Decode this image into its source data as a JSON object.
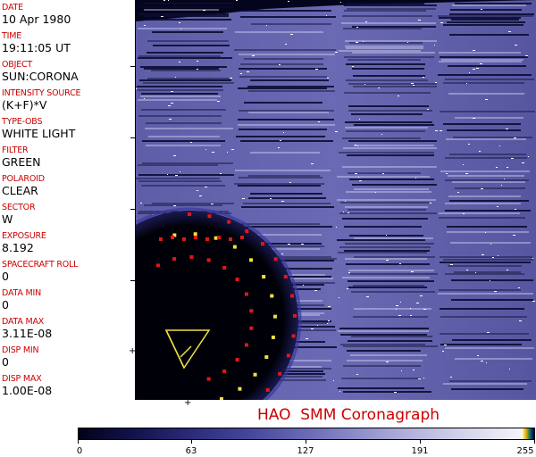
{
  "sidebar": {
    "fields": [
      {
        "label": "DATE",
        "value": "10 Apr 1980"
      },
      {
        "label": "TIME",
        "value": "19:11:05 UT"
      },
      {
        "label": "OBJECT",
        "value": "SUN:CORONA"
      },
      {
        "label": "INTENSITY SOURCE",
        "value": "(K+F)*V"
      },
      {
        "label": "TYPE-OBS",
        "value": "WHITE LIGHT"
      },
      {
        "label": "FILTER",
        "value": "GREEN"
      },
      {
        "label": "POLAROID",
        "value": "CLEAR"
      },
      {
        "label": "SECTOR",
        "value": "W"
      },
      {
        "label": "EXPOSURE",
        "value": "8.192"
      },
      {
        "label": "SPACECRAFT ROLL",
        "value": "0"
      },
      {
        "label": "DATA MIN",
        "value": "0"
      },
      {
        "label": "DATA MAX",
        "value": "3.11E-08"
      },
      {
        "label": "DISP MIN",
        "value": "0"
      },
      {
        "label": "DISP MAX",
        "value": "1.00E-08"
      }
    ]
  },
  "caption": "HAO  SMM Coronagraph",
  "colorbar": {
    "tick_labels": [
      "0",
      "63",
      "127",
      "191",
      "255"
    ],
    "colors": {
      "low": "#02021a",
      "mid": "#4a4a9e",
      "high": "#f4f4fc"
    }
  },
  "colors": {
    "label_red": "#cc0000",
    "background": "#04041c",
    "marker_red": "#e01818",
    "marker_yellow": "#f0e040"
  }
}
